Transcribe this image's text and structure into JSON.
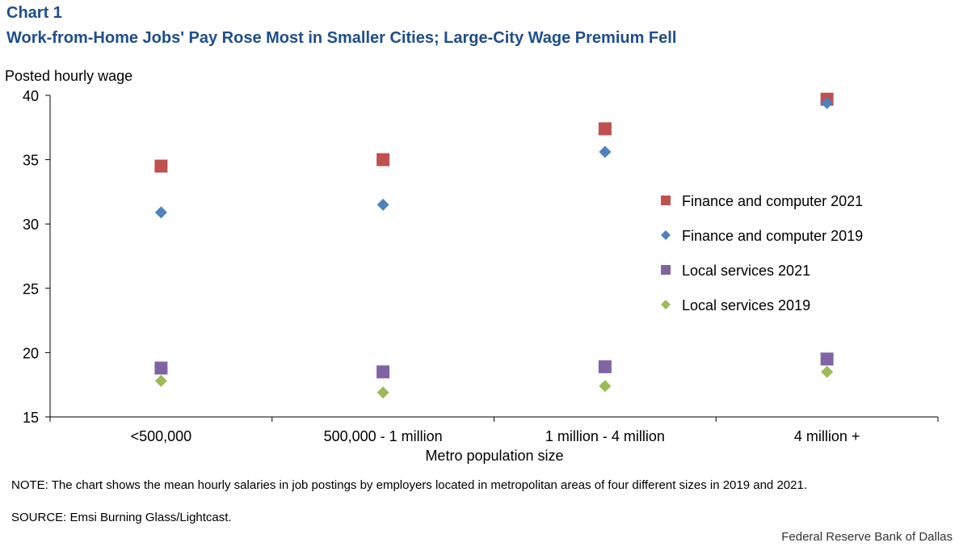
{
  "header": {
    "label": "Chart 1",
    "title": "Work-from-Home  Jobs' Pay Rose Most in Smaller Cities; Large-City Wage Premium  Fell"
  },
  "footer": {
    "note": "NOTE: The chart shows the mean hourly salaries in job postings by employers located in metropolitan areas of four different sizes in 2019 and 2021.",
    "source": "SOURCE: Emsi Burning Glass/Lightcast.",
    "credit": "Federal Reserve  Bank of Dallas"
  },
  "chart_data": {
    "type": "scatter",
    "title": "Work-from-Home  Jobs' Pay Rose Most in Smaller Cities; Large-City Wage Premium  Fell",
    "xlabel": "Metro population  size",
    "ylabel": "Posted hourly  wage",
    "categories": [
      "<500,000",
      "500,000 - 1 million",
      "1 million - 4 million",
      "4 million +"
    ],
    "ylim": [
      15,
      40
    ],
    "yticks": [
      15,
      20,
      25,
      30,
      35,
      40
    ],
    "grid": false,
    "legend_position": "right",
    "series": [
      {
        "name": "Finance and computer 2021",
        "marker": "square",
        "color": "#c0504d",
        "values": [
          34.5,
          35.0,
          37.4,
          39.7
        ]
      },
      {
        "name": "Finance and computer 2019",
        "marker": "diamond",
        "color": "#4f81bd",
        "values": [
          30.9,
          31.5,
          35.6,
          39.4
        ]
      },
      {
        "name": "Local services 2021",
        "marker": "square",
        "color": "#8064a2",
        "values": [
          18.8,
          18.5,
          18.9,
          19.5
        ]
      },
      {
        "name": "Local services 2019",
        "marker": "diamond",
        "color": "#9bbb59",
        "values": [
          17.8,
          16.9,
          17.4,
          18.5
        ]
      }
    ]
  }
}
